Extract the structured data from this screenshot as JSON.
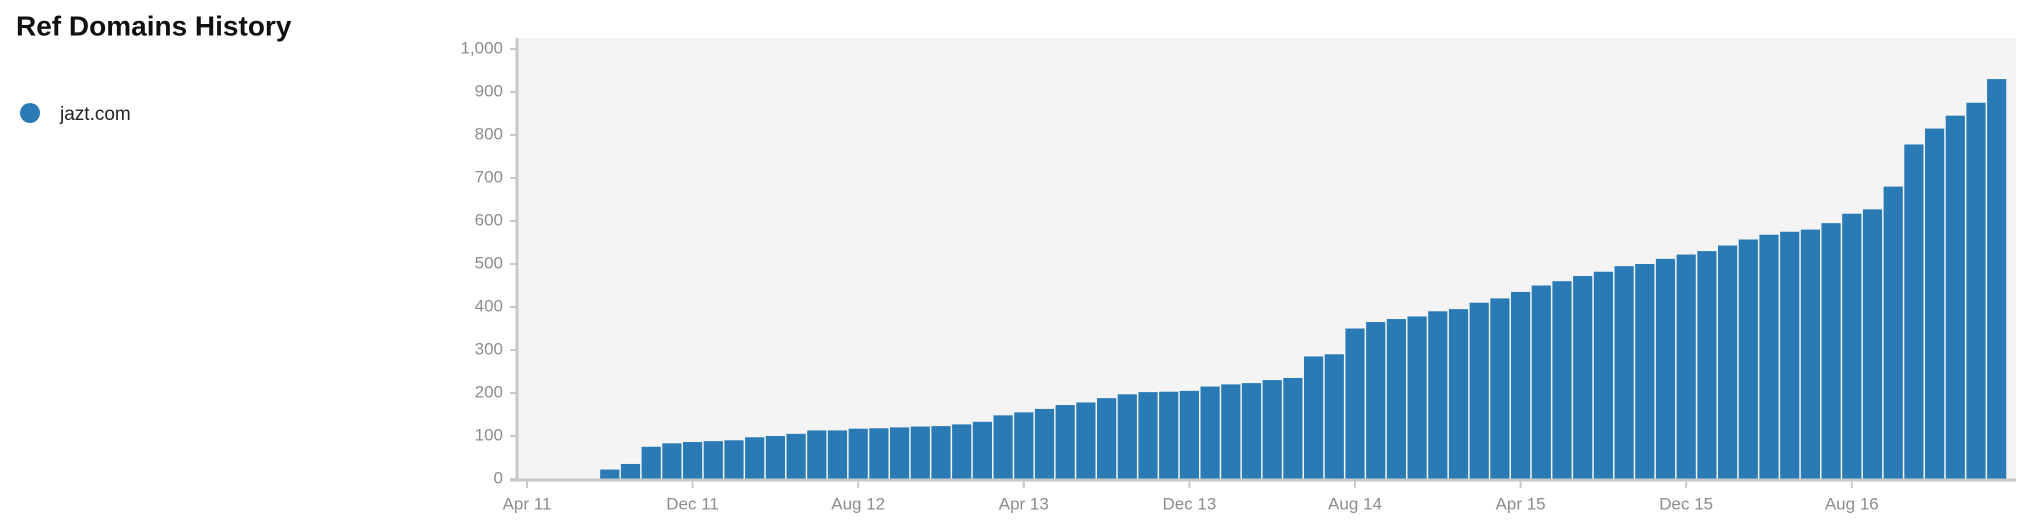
{
  "chart_data": {
    "type": "bar",
    "title": "Ref Domains History",
    "series": [
      {
        "name": "jazt.com",
        "color": "#2a7ab5",
        "values": [
          null,
          null,
          null,
          null,
          22,
          35,
          75,
          83,
          86,
          88,
          90,
          97,
          100,
          105,
          113,
          113,
          117,
          118,
          120,
          122,
          123,
          127,
          133,
          148,
          155,
          163,
          172,
          178,
          188,
          197,
          202,
          203,
          205,
          215,
          220,
          223,
          230,
          235,
          285,
          290,
          350,
          365,
          372,
          378,
          390,
          395,
          410,
          420,
          435,
          450,
          460,
          472,
          482,
          495,
          500,
          512,
          522,
          530,
          543,
          557,
          568,
          575,
          580,
          595,
          617,
          627,
          680,
          778,
          815,
          845,
          875,
          930
        ]
      }
    ],
    "categories": [
      "Apr 11",
      null,
      null,
      null,
      null,
      null,
      null,
      null,
      "Dec 11",
      null,
      null,
      null,
      null,
      null,
      null,
      null,
      "Aug 12",
      null,
      null,
      null,
      null,
      null,
      null,
      null,
      "Apr 13",
      null,
      null,
      null,
      null,
      null,
      null,
      null,
      "Dec 13",
      null,
      null,
      null,
      null,
      null,
      null,
      null,
      "Aug 14",
      null,
      null,
      null,
      null,
      null,
      null,
      null,
      "Apr 15",
      null,
      null,
      null,
      null,
      null,
      null,
      null,
      "Dec 15",
      null,
      null,
      null,
      null,
      null,
      null,
      null,
      "Aug 16",
      null,
      null,
      null,
      null,
      null,
      null,
      null
    ],
    "ylim": [
      0,
      1000
    ],
    "yticks": [
      0,
      100,
      200,
      300,
      400,
      500,
      600,
      700,
      800,
      900,
      {
        "value": 1000,
        "label": "1,000"
      }
    ]
  }
}
